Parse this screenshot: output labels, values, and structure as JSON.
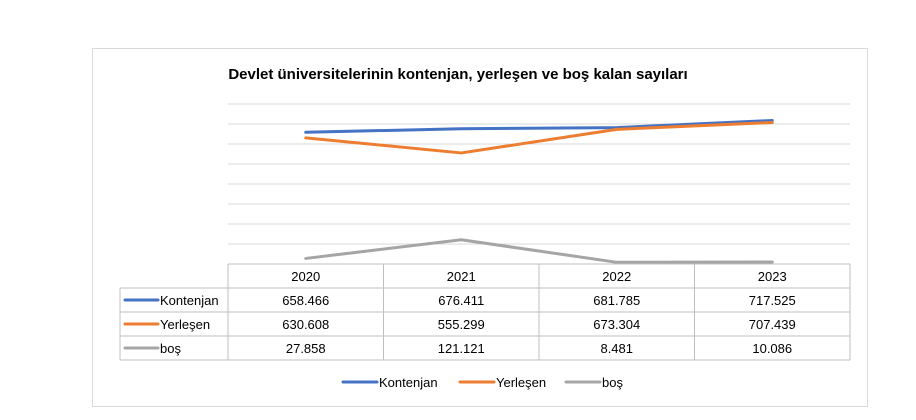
{
  "chart_data": {
    "type": "line",
    "title": "Devlet üniversitelerinin kontenjan, yerleşen ve boş kalan sayıları",
    "categories": [
      "2020",
      "2021",
      "2022",
      "2023"
    ],
    "series": [
      {
        "name": "Kontenjan",
        "color": "#4472c4",
        "values": [
          658466,
          676411,
          681785,
          717525
        ],
        "labels": [
          "658.466",
          "676.411",
          "681.785",
          "717.525"
        ]
      },
      {
        "name": "Yerleşen",
        "color": "#ed7d31",
        "values": [
          630608,
          555299,
          673304,
          707439
        ],
        "labels": [
          "630.608",
          "555.299",
          "673.304",
          "707.439"
        ]
      },
      {
        "name": "boş",
        "color": "#a5a5a5",
        "values": [
          27858,
          121121,
          8481,
          10086
        ],
        "labels": [
          "27.858",
          "121.121",
          "8.481",
          "10.086"
        ]
      }
    ],
    "ylim": [
      0,
      800000
    ],
    "grid": true,
    "legend_position": "bottom",
    "data_table": true
  }
}
